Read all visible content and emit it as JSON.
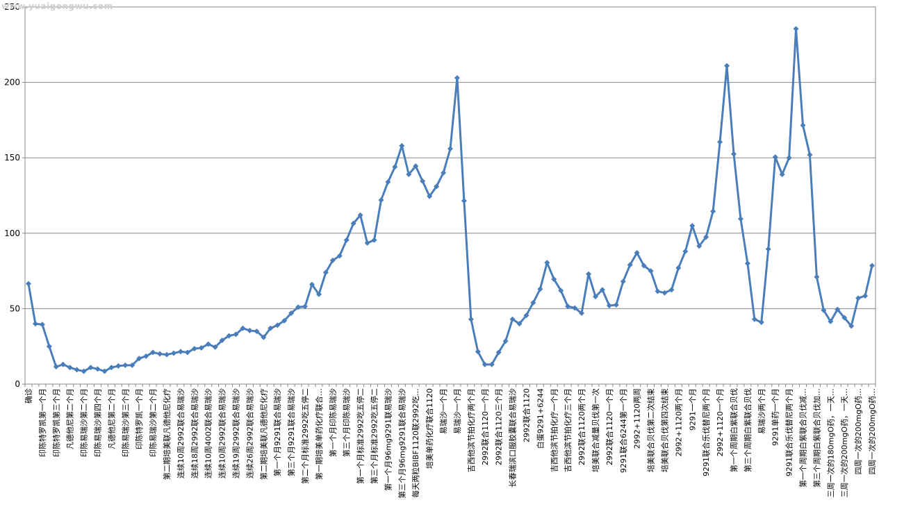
{
  "watermark": "www.yuaigongwu.com",
  "chart_data": {
    "type": "line",
    "title": "",
    "xlabel": "",
    "ylabel": "",
    "ylim": [
      0,
      250
    ],
    "yticks": [
      0,
      50,
      100,
      150,
      200,
      250
    ],
    "grid": "horizontal",
    "legend": "none",
    "line_color": "#4a7ebb",
    "marker": "diamond",
    "x": [
      "确诊",
      "",
      "印陈特罗凯第一个月",
      "",
      "印陈特罗凯第三个月",
      "",
      "凡德他尼第二个月",
      "",
      "印陈易瑞沙第二个月",
      "",
      "印陈易瑞沙第四个月",
      "",
      "凡德他尼第二个月",
      "",
      "印陈易瑞沙第三个月",
      "",
      "印陈特罗凯一个月",
      "",
      "印陈易瑞沙第二个月",
      "",
      "第二期培美联凡德他尼化疗",
      "",
      "连续10周2992联合易瑞沙",
      "",
      "连续18周2992联合易瑞沙",
      "",
      "连续10周4002联合易瑞沙",
      "",
      "连续10周2992联合易瑞沙",
      "",
      "连续19周2992联合易瑞沙",
      "",
      "连续26周2992联合易瑞沙",
      "",
      "第二期培美联凡德他尼化疗",
      "",
      "第一个月9291联合易瑞沙",
      "",
      "第三个月9291联合易瑞沙",
      "",
      "第二个月标准2992吃五停二",
      "",
      "第一期培美单药化疗联合…",
      "",
      "第一个月印陈易瑞沙",
      "",
      "第三个月印陈易瑞沙",
      "",
      "第一个月标准2992吃五停二",
      "",
      "第三个月标准2992吃五停二",
      "",
      "第一个月96mg9291联易瑞沙",
      "",
      "第三个月96mg9291联合易瑞沙",
      "",
      "每天两粒BIBF1120联2992吃…",
      "",
      "培美单药化疗联合1120",
      "",
      "易瑞沙一个月",
      "",
      "易瑞沙一个月",
      "",
      "吉西他滨节拍化疗两个月",
      "",
      "2992联合1120一个月",
      "",
      "2992联合1120三个月",
      "",
      "长春瑞滨口服胶囊联合易瑞沙",
      "",
      "2992联合1120",
      "",
      "白蛋9291+6244",
      "",
      "吉西他滨节拍化疗一个月",
      "",
      "吉西他滨节拍化疗三个月",
      "",
      "2992联合1120两个月",
      "",
      "培美联合减量贝伐第一次",
      "",
      "2992联合1120一个月",
      "",
      "9291联合6244第一个月",
      "",
      "2992+1120两周",
      "",
      "培美联合贝伐第二次结束",
      "",
      "培美联合贝伐第四次结束",
      "",
      "2992+1120两个月",
      "",
      "9291一个月",
      "",
      "9291联合乐伐替尼两个月",
      "",
      "2992+1120一个月",
      "",
      "第一个周期白紫联合贝伐",
      "",
      "第三个周期白紫联合贝伐",
      "",
      "易瑞沙两个月",
      "",
      "9291单药一个月",
      "",
      "9291联合乐伐替尼两个月",
      "",
      "第一个周期白紫联合贝伐减…",
      "",
      "第三个周期白紫联合贝伐加…",
      "",
      "三周一次的180mgO药，一天…",
      "",
      "三周一次的200mgO药，一天…",
      "",
      "四周一次的200mgO药…",
      "",
      "四周一次的200mgO药…"
    ],
    "series": [
      {
        "values": [
          66.5,
          40,
          39.5,
          25,
          11.5,
          13,
          11,
          9.5,
          8.5,
          11,
          10,
          8.5,
          11,
          12,
          12.5,
          12.5,
          17,
          18.5,
          21,
          20,
          19.5,
          20.5,
          21.5,
          21,
          23.5,
          24,
          26.5,
          24.5,
          29,
          32,
          33,
          37,
          35.5,
          35,
          31,
          37,
          39,
          42,
          47,
          51,
          51.5,
          66,
          59.5,
          74,
          82,
          85,
          95.5,
          106.5,
          112,
          93.5,
          95.5,
          122,
          134,
          144,
          158,
          139,
          144.5,
          134.5,
          124.5,
          131,
          140,
          156,
          203,
          121.5,
          43,
          21.5,
          13,
          13,
          21,
          28.5,
          43,
          40,
          45.5,
          54,
          63,
          80.5,
          69.5,
          62,
          51.5,
          50.5,
          47,
          73,
          58,
          62.5,
          52,
          52.5,
          68,
          79,
          87,
          78.5,
          75,
          61.5,
          60.5,
          62.5,
          77,
          88,
          105,
          91.5,
          97.5,
          114.5,
          160.5,
          211,
          152.5,
          109.5,
          80,
          43,
          41,
          89.5,
          150.5,
          139,
          150,
          235.5,
          171.5,
          152,
          71,
          49,
          41.5,
          49.5,
          44,
          38.5,
          57,
          58.5,
          78.5
        ]
      }
    ]
  }
}
